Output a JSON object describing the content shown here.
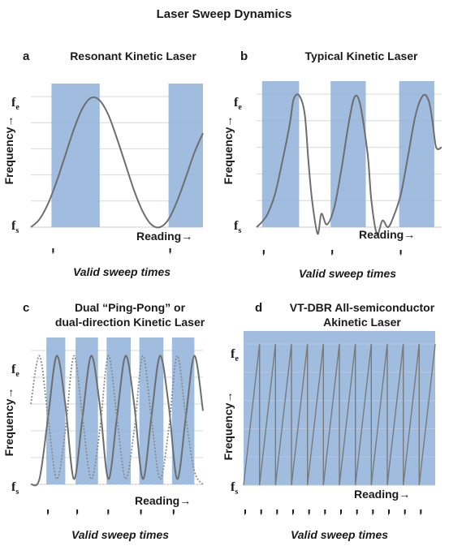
{
  "figure": {
    "title": "Laser Sweep Dynamics"
  },
  "panels": [
    {
      "letter": "a",
      "title_lines": [
        "Resonant Kinetic Laser"
      ],
      "ylabel": "Frequency→",
      "y_ticks": [
        {
          "main": "f",
          "sub": "e"
        },
        {
          "main": "f",
          "sub": "s"
        }
      ],
      "reading_label": "Reading→",
      "valid_label": "Valid sweep times"
    },
    {
      "letter": "b",
      "title_lines": [
        "Typical Kinetic Laser"
      ],
      "ylabel": "Frequency→",
      "y_ticks": [
        {
          "main": "f",
          "sub": "e"
        },
        {
          "main": "f",
          "sub": "s"
        }
      ],
      "reading_label": "Reading→",
      "valid_label": "Valid sweep times"
    },
    {
      "letter": "c",
      "title_lines": [
        "Dual “Ping-Pong” or",
        "dual-direction Kinetic Laser"
      ],
      "ylabel": "Frequency→",
      "y_ticks": [
        {
          "main": "f",
          "sub": "e"
        },
        {
          "main": "f",
          "sub": "s"
        }
      ],
      "reading_label": "Reading→",
      "valid_label": "Valid sweep times"
    },
    {
      "letter": "d",
      "title_lines": [
        "VT-DBR All-semiconductor",
        "Akinetic Laser"
      ],
      "ylabel": "Frequency→",
      "y_ticks": [
        {
          "main": "f",
          "sub": "e"
        },
        {
          "main": "f",
          "sub": "s"
        }
      ],
      "reading_label": "Reading→",
      "valid_label": "Valid sweep times"
    }
  ],
  "chart_data": [
    {
      "type": "line",
      "panel": "a",
      "x_range": [
        0,
        1
      ],
      "ylim": [
        0,
        1
      ],
      "y_tick_labels": [
        "fe",
        "fs"
      ],
      "grid": true,
      "line_color": "#6e6e6e",
      "band_color": "#8fb0d9",
      "series": [
        {
          "style": "solid",
          "x": [
            0,
            0.05,
            0.1,
            0.15,
            0.2,
            0.25,
            0.3,
            0.35,
            0.4,
            0.45,
            0.5,
            0.55,
            0.6,
            0.65,
            0.7,
            0.75,
            0.8,
            0.85,
            0.9,
            0.95,
            1.0
          ],
          "values": [
            0.0,
            0.06,
            0.18,
            0.35,
            0.55,
            0.75,
            0.91,
            0.99,
            0.97,
            0.86,
            0.68,
            0.48,
            0.28,
            0.12,
            0.02,
            0.0,
            0.06,
            0.2,
            0.38,
            0.57,
            0.72
          ]
        }
      ],
      "bands": [
        [
          0.12,
          0.4
        ],
        [
          0.8,
          1.0
        ]
      ]
    },
    {
      "type": "line",
      "panel": "b",
      "x_range": [
        0,
        1
      ],
      "ylim": [
        0,
        1
      ],
      "y_tick_labels": [
        "fe",
        "fs"
      ],
      "grid": true,
      "line_color": "#6e6e6e",
      "band_color": "#8fb0d9",
      "series": [
        {
          "style": "solid",
          "x": [
            0,
            0.03,
            0.06,
            0.1,
            0.14,
            0.18,
            0.2,
            0.23,
            0.26,
            0.28,
            0.3,
            0.33,
            0.35,
            0.38,
            0.42,
            0.46,
            0.5,
            0.53,
            0.56,
            0.6,
            0.62,
            0.65,
            0.68,
            0.71,
            0.74,
            0.78,
            0.82,
            0.86,
            0.9,
            0.93,
            0.95,
            0.97,
            1.0
          ],
          "values": [
            0.0,
            0.04,
            0.1,
            0.25,
            0.5,
            0.78,
            0.96,
            0.99,
            0.85,
            0.5,
            0.2,
            -0.05,
            0.1,
            0.02,
            0.15,
            0.45,
            0.8,
            0.98,
            0.92,
            0.55,
            0.2,
            -0.05,
            0.05,
            0.0,
            0.08,
            0.25,
            0.55,
            0.85,
            0.99,
            0.95,
            0.8,
            0.6,
            0.6
          ]
        }
      ],
      "bands": [
        [
          0.03,
          0.23
        ],
        [
          0.4,
          0.59
        ],
        [
          0.77,
          0.96
        ]
      ]
    },
    {
      "type": "line",
      "panel": "c",
      "x_range": [
        0,
        1
      ],
      "ylim": [
        0,
        1
      ],
      "y_tick_labels": [
        "fe",
        "fs"
      ],
      "grid": true,
      "line_color": "#6e6e6e",
      "band_color": "#8fb0d9",
      "series": [
        {
          "style": "solid",
          "x": [
            0,
            0.05,
            0.1,
            0.15,
            0.2,
            0.25,
            0.3,
            0.35,
            0.4,
            0.45,
            0.5,
            0.55,
            0.6,
            0.65,
            0.7,
            0.75,
            0.8,
            0.85,
            0.9,
            0.95,
            1.0
          ],
          "values": [
            0.0,
            0.04,
            0.5,
            0.96,
            0.6,
            0.04,
            0.5,
            0.96,
            0.6,
            0.04,
            0.5,
            0.96,
            0.6,
            0.04,
            0.5,
            0.96,
            0.6,
            0.04,
            0.5,
            0.96,
            0.55
          ]
        },
        {
          "style": "dotted",
          "x": [
            0,
            0.05,
            0.1,
            0.15,
            0.2,
            0.25,
            0.3,
            0.35,
            0.4,
            0.45,
            0.5,
            0.55,
            0.6,
            0.65,
            0.7,
            0.75,
            0.8,
            0.85,
            0.9,
            0.95,
            1.0
          ],
          "values": [
            0.6,
            0.96,
            0.5,
            0.04,
            0.4,
            0.96,
            0.5,
            0.04,
            0.4,
            0.96,
            0.5,
            0.04,
            0.4,
            0.96,
            0.5,
            0.04,
            0.4,
            0.96,
            0.5,
            0.1,
            0.0
          ]
        }
      ],
      "bands": [
        [
          0.09,
          0.2
        ],
        [
          0.26,
          0.39
        ],
        [
          0.44,
          0.58
        ],
        [
          0.63,
          0.77
        ],
        [
          0.82,
          0.95
        ]
      ]
    },
    {
      "type": "line",
      "panel": "d",
      "x_range": [
        0,
        1
      ],
      "ylim": [
        0,
        1
      ],
      "y_tick_labels": [
        "fe",
        "fs"
      ],
      "grid": true,
      "line_color": "#6e6e6e",
      "band_color": "#8fb0d9",
      "series": [
        {
          "style": "sawtooth",
          "teeth": 12
        }
      ],
      "bands": [
        [
          0.0,
          1.0
        ]
      ]
    }
  ]
}
